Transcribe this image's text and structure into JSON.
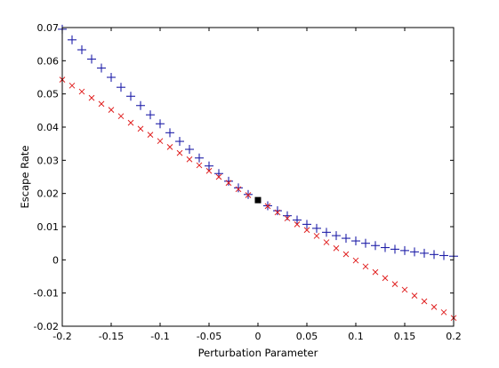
{
  "chart_data": {
    "type": "scatter",
    "title": "",
    "xlabel": "Perturbation Parameter",
    "ylabel": "Escape Rate",
    "xlim": [
      -0.2,
      0.2
    ],
    "ylim": [
      -0.02,
      0.07
    ],
    "xticks": [
      -0.2,
      -0.15,
      -0.1,
      -0.05,
      0,
      0.05,
      0.1,
      0.15,
      0.2
    ],
    "xtick_labels": [
      "-0.2",
      "-0.15",
      "-0.1",
      "-0.05",
      "0",
      "0.05",
      "0.1",
      "0.15",
      "0.2"
    ],
    "yticks": [
      -0.02,
      -0.01,
      0,
      0.01,
      0.02,
      0.03,
      0.04,
      0.05,
      0.06,
      0.07
    ],
    "ytick_labels": [
      "-0.02",
      "-0.01",
      "0",
      "0.01",
      "0.02",
      "0.03",
      "0.04",
      "0.05",
      "0.06",
      "0.07"
    ],
    "grid": false,
    "legend": "none",
    "series": [
      {
        "marker": "plus",
        "color": "#1f1fa8",
        "x": [
          -0.2,
          -0.19,
          -0.18,
          -0.17,
          -0.16,
          -0.15,
          -0.14,
          -0.13,
          -0.12,
          -0.11,
          -0.1,
          -0.09,
          -0.08,
          -0.07,
          -0.06,
          -0.05,
          -0.04,
          -0.03,
          -0.02,
          -0.01,
          0.01,
          0.02,
          0.03,
          0.04,
          0.05,
          0.06,
          0.07,
          0.08,
          0.09,
          0.1,
          0.11,
          0.12,
          0.13,
          0.14,
          0.15,
          0.16,
          0.17,
          0.18,
          0.19,
          0.2
        ],
        "y": [
          0.0695,
          0.0663,
          0.0633,
          0.0605,
          0.0578,
          0.055,
          0.052,
          0.0493,
          0.0465,
          0.0437,
          0.041,
          0.0383,
          0.0357,
          0.0333,
          0.0307,
          0.0283,
          0.026,
          0.0237,
          0.0217,
          0.0197,
          0.0163,
          0.0148,
          0.0133,
          0.012,
          0.0107,
          0.0095,
          0.0083,
          0.0073,
          0.0065,
          0.0057,
          0.005,
          0.0043,
          0.0037,
          0.0032,
          0.0028,
          0.0024,
          0.002,
          0.0016,
          0.0013,
          0.0011
        ]
      },
      {
        "marker": "x",
        "color": "#e02020",
        "x": [
          -0.2,
          -0.19,
          -0.18,
          -0.17,
          -0.16,
          -0.15,
          -0.14,
          -0.13,
          -0.12,
          -0.11,
          -0.1,
          -0.09,
          -0.08,
          -0.07,
          -0.06,
          -0.05,
          -0.04,
          -0.03,
          -0.02,
          -0.01,
          0.01,
          0.02,
          0.03,
          0.04,
          0.05,
          0.06,
          0.07,
          0.08,
          0.09,
          0.1,
          0.11,
          0.12,
          0.13,
          0.14,
          0.15,
          0.16,
          0.17,
          0.18,
          0.19,
          0.2
        ],
        "y": [
          0.0543,
          0.0525,
          0.0507,
          0.0488,
          0.047,
          0.0452,
          0.0433,
          0.0413,
          0.0395,
          0.0377,
          0.0358,
          0.034,
          0.0322,
          0.0303,
          0.0285,
          0.0268,
          0.025,
          0.0232,
          0.0213,
          0.0195,
          0.0162,
          0.0143,
          0.0125,
          0.0107,
          0.009,
          0.0072,
          0.0053,
          0.0035,
          0.0017,
          -0.0002,
          -0.002,
          -0.0037,
          -0.0055,
          -0.0073,
          -0.009,
          -0.0108,
          -0.0125,
          -0.0142,
          -0.0158,
          -0.0175
        ]
      }
    ],
    "highlight_point": {
      "x": 0,
      "y": 0.018,
      "marker": "square",
      "color": "#000000"
    }
  }
}
